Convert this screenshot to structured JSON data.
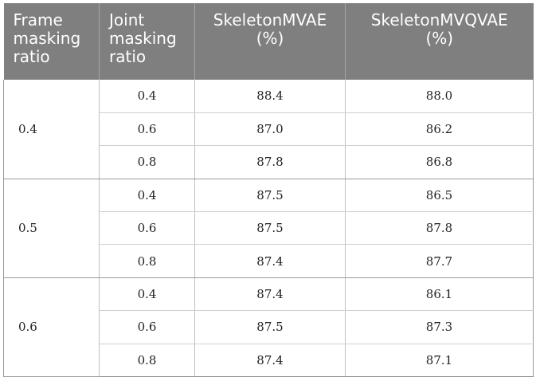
{
  "table": {
    "headers": {
      "frame": [
        "Frame",
        "masking",
        "ratio"
      ],
      "joint": [
        "Joint",
        "masking",
        "ratio"
      ],
      "mvae": [
        "SkeletonMVAE",
        "(%)"
      ],
      "mvqvae": [
        "SkeletonMVQVAE",
        "(%)"
      ]
    },
    "groups": [
      {
        "frame": "0.4",
        "rows": [
          {
            "joint": "0.4",
            "mvae": "88.4",
            "mvqvae": "88.0"
          },
          {
            "joint": "0.6",
            "mvae": "87.0",
            "mvqvae": "86.2"
          },
          {
            "joint": "0.8",
            "mvae": "87.8",
            "mvqvae": "86.8"
          }
        ]
      },
      {
        "frame": "0.5",
        "rows": [
          {
            "joint": "0.4",
            "mvae": "87.5",
            "mvqvae": "86.5"
          },
          {
            "joint": "0.6",
            "mvae": "87.5",
            "mvqvae": "87.8"
          },
          {
            "joint": "0.8",
            "mvae": "87.4",
            "mvqvae": "87.7"
          }
        ]
      },
      {
        "frame": "0.6",
        "rows": [
          {
            "joint": "0.4",
            "mvae": "87.4",
            "mvqvae": "86.1"
          },
          {
            "joint": "0.6",
            "mvae": "87.5",
            "mvqvae": "87.3"
          },
          {
            "joint": "0.8",
            "mvae": "87.4",
            "mvqvae": "87.1"
          }
        ]
      }
    ]
  }
}
